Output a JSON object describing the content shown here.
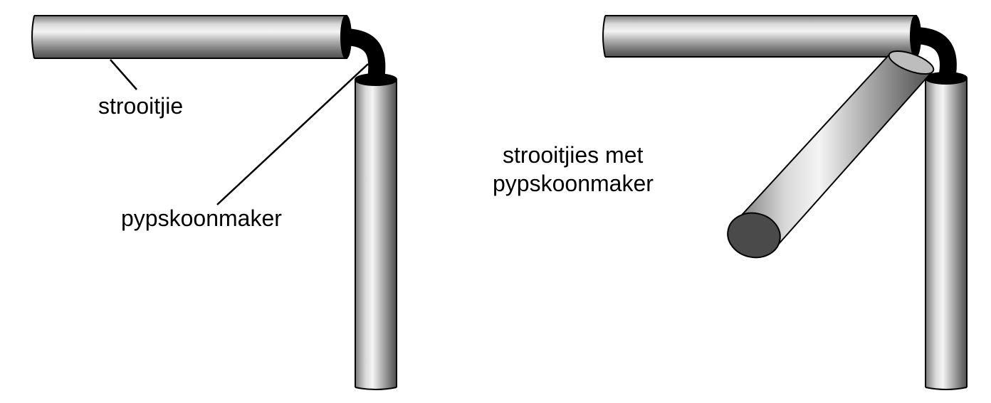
{
  "labels": {
    "straw": "strooitjie",
    "pipe_cleaner": "pypskoonmaker",
    "assembled_line1": "strooitjies met",
    "assembled_line2": "pypskoonmaker"
  },
  "colors": {
    "outline": "#000000",
    "straw_light": "#e8e8e8",
    "straw_dark": "#5a5a5a",
    "end_cap": "#4a4a4a",
    "pipe_cleaner": "#000000",
    "background": "#ffffff"
  }
}
